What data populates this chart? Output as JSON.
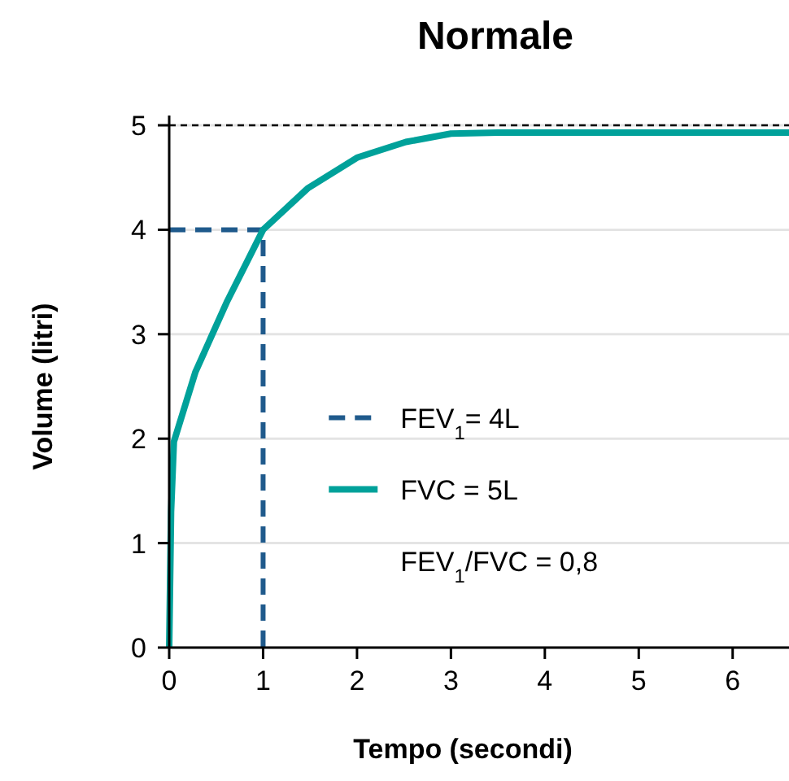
{
  "chart_data": {
    "type": "line",
    "title": "Normale",
    "xlabel": "Tempo (secondi)",
    "ylabel": "Volume (litri)",
    "xlim": [
      0,
      6.6
    ],
    "xticks": [
      0,
      1,
      2,
      3,
      4,
      5,
      6
    ],
    "ylim": [
      0,
      5
    ],
    "yticks": [
      0,
      1,
      2,
      3,
      4,
      5
    ],
    "grid": "y",
    "legend": "center",
    "series": [
      {
        "name": "FEV$_{1}$= 4L",
        "color": "#1f5a8c",
        "line_style": "dashed",
        "x": [
          0,
          1,
          1
        ],
        "values": [
          4,
          4,
          0
        ]
      },
      {
        "name": "FVC = 5L",
        "color": "#00a19a",
        "line_style": "solid",
        "x": [
          0,
          0.02,
          0.05,
          0.28,
          0.62,
          1,
          1.48,
          2,
          2.52,
          3,
          3.5,
          6.6
        ],
        "values": [
          0,
          1.3,
          1.97,
          2.64,
          3.32,
          4,
          4.4,
          4.69,
          4.84,
          4.92,
          4.93,
          4.93
        ]
      }
    ],
    "ref_lines": [
      {
        "axis": "y",
        "value": 5,
        "color": "#000000",
        "line_style": "dashed"
      }
    ],
    "annotations": [
      "FEV$_{1}$/FVC = 0,8"
    ]
  }
}
